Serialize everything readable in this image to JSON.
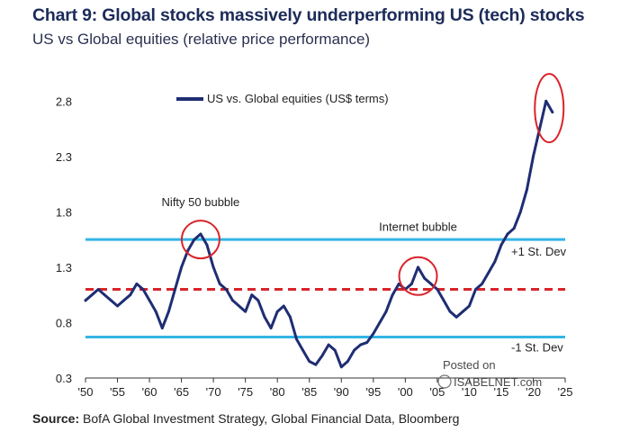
{
  "title": "Chart 9: Global stocks massively underperforming US (tech) stocks",
  "subtitle": "US vs Global equities (relative price performance)",
  "source": {
    "label": "Source:",
    "text": "BofA Global Investment Strategy, Global Financial Data, Bloomberg"
  },
  "watermark": {
    "line1": "Posted on",
    "line2": "ISABELNET.com"
  },
  "colors": {
    "series": "#1f2d73",
    "band": "#33b5e5",
    "mean": "#d9242b",
    "highlight": "#d9242b"
  },
  "chart_data": {
    "type": "line",
    "title": "US vs Global equities (relative price performance)",
    "xlabel": "",
    "ylabel": "",
    "xlim": [
      1950,
      2025
    ],
    "ylim": [
      0.3,
      2.9
    ],
    "grid": false,
    "legend_position": "top-left",
    "x_tick_values": [
      1950,
      1955,
      1960,
      1965,
      1970,
      1975,
      1980,
      1985,
      1990,
      1995,
      2000,
      2005,
      2010,
      2015,
      2020,
      2025
    ],
    "x_tick_labels": [
      "'50",
      "'55",
      "'60",
      "'65",
      "'70",
      "'75",
      "'80",
      "'85",
      "'90",
      "'95",
      "'00",
      "'05",
      "'10",
      "'15",
      "'20",
      "'25"
    ],
    "y_tick_values": [
      0.3,
      0.8,
      1.3,
      1.8,
      2.3,
      2.8
    ],
    "y_tick_labels": [
      "0.3",
      "0.8",
      "1.3",
      "1.8",
      "2.3",
      "2.8"
    ],
    "series": [
      {
        "name": "US vs. Global equities (US$ terms)",
        "x": [
          1950,
          1951,
          1952,
          1953,
          1954,
          1955,
          1956,
          1957,
          1958,
          1959,
          1960,
          1961,
          1962,
          1963,
          1964,
          1965,
          1966,
          1967,
          1968,
          1969,
          1970,
          1971,
          1972,
          1973,
          1974,
          1975,
          1976,
          1977,
          1978,
          1979,
          1980,
          1981,
          1982,
          1983,
          1984,
          1985,
          1986,
          1987,
          1988,
          1989,
          1990,
          1991,
          1992,
          1993,
          1994,
          1995,
          1996,
          1997,
          1998,
          1999,
          2000,
          2001,
          2002,
          2003,
          2004,
          2005,
          2006,
          2007,
          2008,
          2009,
          2010,
          2011,
          2012,
          2013,
          2014,
          2015,
          2016,
          2017,
          2018,
          2019,
          2020,
          2021,
          2022,
          2023
        ],
        "y": [
          1.0,
          1.05,
          1.1,
          1.05,
          1.0,
          0.95,
          1.0,
          1.05,
          1.15,
          1.1,
          1.0,
          0.9,
          0.75,
          0.9,
          1.1,
          1.3,
          1.45,
          1.55,
          1.6,
          1.5,
          1.3,
          1.15,
          1.1,
          1.0,
          0.95,
          0.9,
          1.05,
          1.0,
          0.85,
          0.75,
          0.9,
          0.95,
          0.85,
          0.65,
          0.55,
          0.45,
          0.42,
          0.5,
          0.6,
          0.55,
          0.4,
          0.45,
          0.55,
          0.6,
          0.62,
          0.7,
          0.8,
          0.9,
          1.05,
          1.15,
          1.1,
          1.15,
          1.3,
          1.2,
          1.15,
          1.1,
          1.0,
          0.9,
          0.85,
          0.9,
          0.95,
          1.1,
          1.15,
          1.25,
          1.35,
          1.5,
          1.6,
          1.65,
          1.8,
          2.0,
          2.3,
          2.55,
          2.8,
          2.7
        ]
      }
    ],
    "reference_lines": [
      {
        "y": 1.55,
        "style": "solid",
        "label": "+1 St. Dev"
      },
      {
        "y": 1.1,
        "style": "dashed",
        "label": ""
      },
      {
        "y": 0.67,
        "style": "solid",
        "label": "-1 St. Dev"
      }
    ],
    "annotations": [
      {
        "text": "Nifty 50 bubble",
        "x": 1968,
        "y": 1.85
      },
      {
        "text": "Internet bubble",
        "x": 2002,
        "y": 1.63
      }
    ],
    "highlights": [
      {
        "x": 1968,
        "y": 1.55
      },
      {
        "x": 2002,
        "y": 1.22
      },
      {
        "x": 2022.5,
        "y": 2.72
      }
    ]
  }
}
